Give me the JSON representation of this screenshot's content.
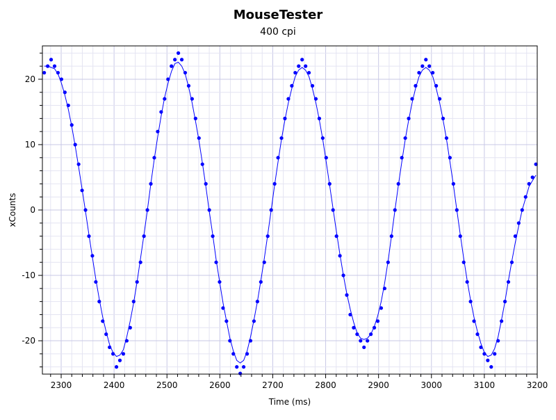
{
  "chart_data": {
    "type": "scatter",
    "title": "MouseTester",
    "subtitle": "400 cpi",
    "xlabel": "Time (ms)",
    "ylabel": "xCounts",
    "xlim": [
      2264.5,
      3200
    ],
    "ylim": [
      -25.1,
      25.1
    ],
    "x_ticks": [
      2300,
      2400,
      2500,
      2600,
      2700,
      2800,
      2900,
      3000,
      3100,
      3200
    ],
    "y_ticks": [
      -20,
      -10,
      0,
      10,
      20
    ],
    "x_minor_step": 20,
    "y_minor_step": 2,
    "grid": true,
    "colors": {
      "series": "#0000ff",
      "major_grid": "#c8c8e6",
      "minor_grid": "#e4e4f2"
    },
    "series": [
      {
        "name": "xCounts",
        "style": "points+smoothed-line",
        "x_start": 2268,
        "x_step": 6.5,
        "y": [
          21,
          22,
          23,
          22,
          21,
          20,
          18,
          16,
          13,
          10,
          7,
          3,
          0,
          -4,
          -7,
          -11,
          -14,
          -17,
          -19,
          -21,
          -22,
          -24,
          -23,
          -22,
          -20,
          -18,
          -14,
          -11,
          -8,
          -4,
          0,
          4,
          8,
          12,
          15,
          17,
          20,
          22,
          23,
          24,
          23,
          21,
          19,
          17,
          14,
          11,
          7,
          4,
          0,
          -4,
          -8,
          -11,
          -15,
          -17,
          -20,
          -22,
          -24,
          -25,
          -24,
          -22,
          -20,
          -17,
          -14,
          -11,
          -8,
          -4,
          0,
          4,
          8,
          11,
          14,
          17,
          19,
          21,
          22,
          23,
          22,
          21,
          19,
          17,
          14,
          11,
          8,
          4,
          0,
          -4,
          -7,
          -10,
          -13,
          -16,
          -18,
          -19,
          -20,
          -21,
          -20,
          -19,
          -18,
          -17,
          -15,
          -12,
          -8,
          -4,
          0,
          4,
          8,
          11,
          14,
          17,
          19,
          21,
          22,
          23,
          22,
          21,
          19,
          17,
          14,
          11,
          8,
          4,
          0,
          -4,
          -8,
          -11,
          -14,
          -17,
          -19,
          -21,
          -22,
          -23,
          -24,
          -22,
          -20,
          -17,
          -14,
          -11,
          -8,
          -4,
          -2,
          0,
          2,
          4,
          5,
          7
        ]
      }
    ]
  }
}
